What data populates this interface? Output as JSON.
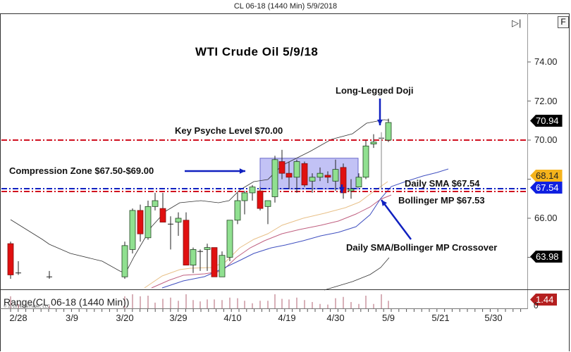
{
  "window": {
    "title": "CL 06-18 (1440 Min)  5/9/2018"
  },
  "toolbar": {
    "end_button_icon": "skip-to-end-icon",
    "f_button_label": "F"
  },
  "range_panel": {
    "label": "Range(CL 06-18 (1440 Min))",
    "copyright": "© 2018 NinjaTrader, LLC",
    "value_tag": "1.44",
    "zero_label": "0"
  },
  "price_tags": {
    "last": {
      "value": "70.94",
      "bg": "#000000",
      "fg": "#ffffff"
    },
    "sma_fast": {
      "value": "68.14",
      "bg": "#f5b31c",
      "fg": "#222222"
    },
    "bollinger_mid": {
      "value": "67.54",
      "bg": "#1020e0",
      "fg": "#ffffff"
    },
    "bollinger_lower": {
      "value": "63.98",
      "bg": "#000000",
      "fg": "#ffffff"
    },
    "range": {
      "value": "1.44",
      "bg": "#b52020",
      "fg": "#ffffff"
    }
  },
  "chart_data": {
    "type": "candlestick",
    "title": "WTI Crude Oil 5/9/18",
    "xlabel": "",
    "ylabel": "",
    "ylim": [
      62.8,
      75.5
    ],
    "y_ticks": [
      "74.00",
      "72.00",
      "70.00",
      "66.00"
    ],
    "x_ticks": [
      "2/28",
      "3/9",
      "3/20",
      "3/29",
      "4/10",
      "4/19",
      "4/30",
      "5/9",
      "5/21",
      "5/30"
    ],
    "horizontal_lines": [
      {
        "name": "Key Psyche Level",
        "value": 70.0,
        "color": "#d01020",
        "style": "dash-dot"
      },
      {
        "name": "Daily SMA",
        "value": 67.54,
        "color": "#1020c0",
        "style": "dash-dot"
      },
      {
        "name": "Bollinger MP",
        "value": 67.53,
        "color": "#d01020",
        "style": "dash-dot"
      }
    ],
    "zones": [
      {
        "name": "Compression Zone",
        "low": 67.5,
        "high": 69.0,
        "color": "#8080e0"
      }
    ],
    "candles": [
      {
        "x": 15,
        "o": 64.7,
        "h": 64.8,
        "l": 62.9,
        "c": 63.1
      },
      {
        "x": 26,
        "o": 63.2,
        "h": 63.8,
        "l": 63.1,
        "c": 63.2
      },
      {
        "x": 70,
        "o": 63.0,
        "h": 63.3,
        "l": 62.9,
        "c": 63.0
      },
      {
        "x": 177,
        "o": 63.0,
        "h": 64.8,
        "l": 62.9,
        "c": 64.6
      },
      {
        "x": 188,
        "o": 64.4,
        "h": 66.5,
        "l": 64.2,
        "c": 66.4
      },
      {
        "x": 199,
        "o": 66.4,
        "h": 66.7,
        "l": 64.8,
        "c": 65.2
      },
      {
        "x": 210,
        "o": 65.0,
        "h": 66.9,
        "l": 64.9,
        "c": 66.6
      },
      {
        "x": 220,
        "o": 66.6,
        "h": 67.3,
        "l": 66.4,
        "c": 66.9
      },
      {
        "x": 231,
        "o": 66.5,
        "h": 67.3,
        "l": 65.8,
        "c": 65.8
      },
      {
        "x": 242,
        "o": 65.7,
        "h": 66.1,
        "l": 64.4,
        "c": 65.7
      },
      {
        "x": 253,
        "o": 65.8,
        "h": 66.3,
        "l": 65.1,
        "c": 66.0
      },
      {
        "x": 264,
        "o": 65.9,
        "h": 66.3,
        "l": 63.6,
        "c": 63.6
      },
      {
        "x": 274,
        "o": 63.6,
        "h": 64.5,
        "l": 63.2,
        "c": 64.4
      },
      {
        "x": 284,
        "o": 64.3,
        "h": 64.4,
        "l": 63.3,
        "c": 64.3
      },
      {
        "x": 294,
        "o": 64.4,
        "h": 64.7,
        "l": 63.3,
        "c": 64.5
      },
      {
        "x": 304,
        "o": 64.5,
        "h": 64.4,
        "l": 63.0,
        "c": 63.0
      },
      {
        "x": 315,
        "o": 63.0,
        "h": 64.3,
        "l": 63.0,
        "c": 64.1
      },
      {
        "x": 326,
        "o": 64.0,
        "h": 65.5,
        "l": 63.8,
        "c": 65.9
      },
      {
        "x": 337,
        "o": 65.9,
        "h": 67.3,
        "l": 65.7,
        "c": 66.9
      },
      {
        "x": 347,
        "o": 66.9,
        "h": 67.4,
        "l": 66.2,
        "c": 67.3
      },
      {
        "x": 358,
        "o": 67.3,
        "h": 67.7,
        "l": 66.9,
        "c": 67.6
      },
      {
        "x": 369,
        "o": 67.4,
        "h": 67.6,
        "l": 66.4,
        "c": 66.5
      },
      {
        "x": 380,
        "o": 66.6,
        "h": 66.9,
        "l": 65.7,
        "c": 66.9
      },
      {
        "x": 390,
        "o": 67.1,
        "h": 69.2,
        "l": 66.8,
        "c": 69.0
      },
      {
        "x": 400,
        "o": 68.9,
        "h": 69.5,
        "l": 68.0,
        "c": 68.3
      },
      {
        "x": 410,
        "o": 68.3,
        "h": 68.9,
        "l": 67.5,
        "c": 68.1
      },
      {
        "x": 421,
        "o": 68.1,
        "h": 69.0,
        "l": 67.3,
        "c": 68.9
      },
      {
        "x": 432,
        "o": 68.8,
        "h": 68.9,
        "l": 67.6,
        "c": 67.7
      },
      {
        "x": 443,
        "o": 67.9,
        "h": 68.3,
        "l": 67.3,
        "c": 68.1
      },
      {
        "x": 454,
        "o": 68.1,
        "h": 68.6,
        "l": 67.9,
        "c": 68.3
      },
      {
        "x": 465,
        "o": 68.2,
        "h": 68.4,
        "l": 67.8,
        "c": 68.1
      },
      {
        "x": 476,
        "o": 67.9,
        "h": 69.0,
        "l": 67.4,
        "c": 68.5
      },
      {
        "x": 487,
        "o": 68.6,
        "h": 68.8,
        "l": 67.0,
        "c": 67.3
      },
      {
        "x": 498,
        "o": 67.4,
        "h": 68.0,
        "l": 67.0,
        "c": 67.5
      },
      {
        "x": 509,
        "o": 67.6,
        "h": 68.3,
        "l": 67.6,
        "c": 68.1
      },
      {
        "x": 519,
        "o": 68.1,
        "h": 70.0,
        "l": 68.0,
        "c": 69.7
      },
      {
        "x": 530,
        "o": 69.8,
        "h": 70.3,
        "l": 69.6,
        "c": 69.9
      },
      {
        "x": 541,
        "o": 70.1,
        "h": 70.4,
        "l": 67.5,
        "c": 70.1
      },
      {
        "x": 551,
        "o": 70.0,
        "h": 71.1,
        "l": 69.9,
        "c": 70.9
      }
    ],
    "series": [
      {
        "name": "Bollinger Upper",
        "color": "#444444"
      },
      {
        "name": "Bollinger Lower",
        "color": "#444444"
      },
      {
        "name": "Bollinger Mid (MP)",
        "color": "#4050c0"
      },
      {
        "name": "SMA fast",
        "color": "#e8c088"
      },
      {
        "name": "SMA slow",
        "color": "#c06080"
      }
    ],
    "annotations": [
      "Key Psyche Level $70.00",
      "Compression Zone $67.50-$69.00",
      "Long-Legged Doji",
      "Daily SMA $67.54",
      "Bollinger MP $67.53",
      "Daily SMA/Bollinger MP Crossover"
    ],
    "last_price": 70.94
  },
  "annotations": {
    "title": "WTI Crude Oil 5/9/18",
    "key_level": "Key Psyche Level $70.00",
    "compression": "Compression Zone $67.50-$69.00",
    "doji": "Long-Legged Doji",
    "sma": "Daily SMA $67.54",
    "bollinger": "Bollinger MP $67.53",
    "crossover": "Daily SMA/Bollinger MP Crossover"
  },
  "y_axis": {
    "t74": "74.00",
    "t72": "72.00",
    "t70": "70.00",
    "t66": "66.00"
  },
  "x_axis": {
    "d0": "2/28",
    "d1": "3/9",
    "d2": "3/20",
    "d3": "3/29",
    "d4": "4/10",
    "d5": "4/19",
    "d6": "4/30",
    "d7": "5/9",
    "d8": "5/21",
    "d9": "5/30"
  }
}
